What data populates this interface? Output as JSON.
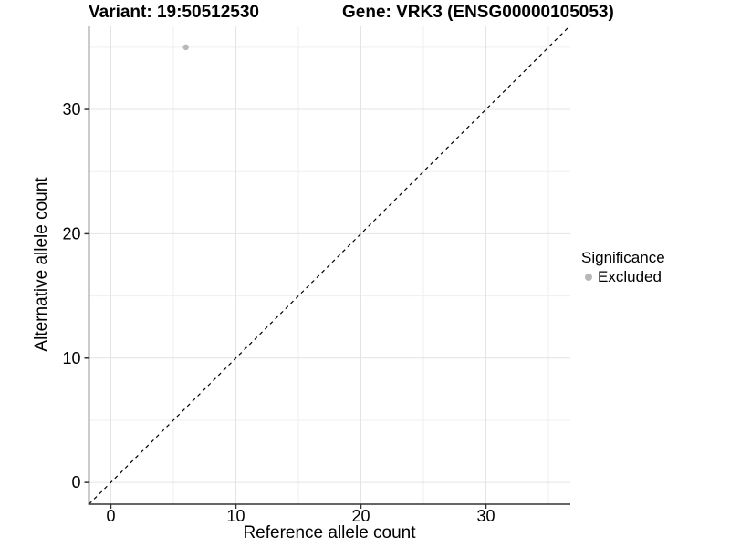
{
  "chart_data": {
    "type": "scatter",
    "title_variant": "Variant: 19:50512530",
    "title_gene": "Gene: VRK3 (ENSG00000105053)",
    "xlabel": "Reference allele count",
    "ylabel": "Alternative allele count",
    "xlim": [
      -1.75,
      36.75
    ],
    "ylim": [
      -1.75,
      36.75
    ],
    "x_major_ticks": [
      0,
      10,
      20,
      30
    ],
    "y_major_ticks": [
      0,
      10,
      20,
      30
    ],
    "x_minor_ticks": [
      5,
      15,
      25,
      35
    ],
    "y_minor_ticks": [
      5,
      15,
      25,
      35
    ],
    "grid": true,
    "identity_line": {
      "style": "dashed",
      "equation": "y = x",
      "color": "#000000"
    },
    "series": [
      {
        "name": "Excluded",
        "color": "#b8b8b8",
        "points": [
          {
            "x": 6,
            "y": 35
          }
        ]
      }
    ],
    "legend": {
      "title": "Significance",
      "position": "right",
      "items": [
        {
          "label": "Excluded",
          "color": "#b8b8b8",
          "marker": "circle"
        }
      ]
    },
    "colors": {
      "background": "#ffffff",
      "grid_major": "#e4e4e4",
      "grid_minor": "#efefef",
      "axis_line": "#333333",
      "tick_text": "#000000"
    }
  }
}
